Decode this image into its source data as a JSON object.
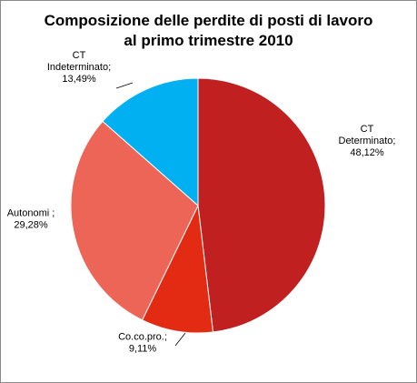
{
  "chart_data": {
    "type": "pie",
    "title_lines": [
      "Composizione delle perdite di posti di lavoro",
      "al primo trimestre 2010"
    ],
    "slices": [
      {
        "label_lines": [
          "CT",
          "Determinato;"
        ],
        "value_text": "48,12%",
        "value": 48.12,
        "color": "#c0201f"
      },
      {
        "label_lines": [
          "Co.co.pro.;"
        ],
        "value_text": "9,11%",
        "value": 9.11,
        "color": "#e32b14"
      },
      {
        "label_lines": [
          "Autonomi ;"
        ],
        "value_text": "29,28%",
        "value": 29.28,
        "color": "#ec6556"
      },
      {
        "label_lines": [
          "CT",
          "Indeterminato;"
        ],
        "value_text": "13,49%",
        "value": 13.49,
        "color": "#00b0f0"
      }
    ],
    "legend": "none"
  }
}
